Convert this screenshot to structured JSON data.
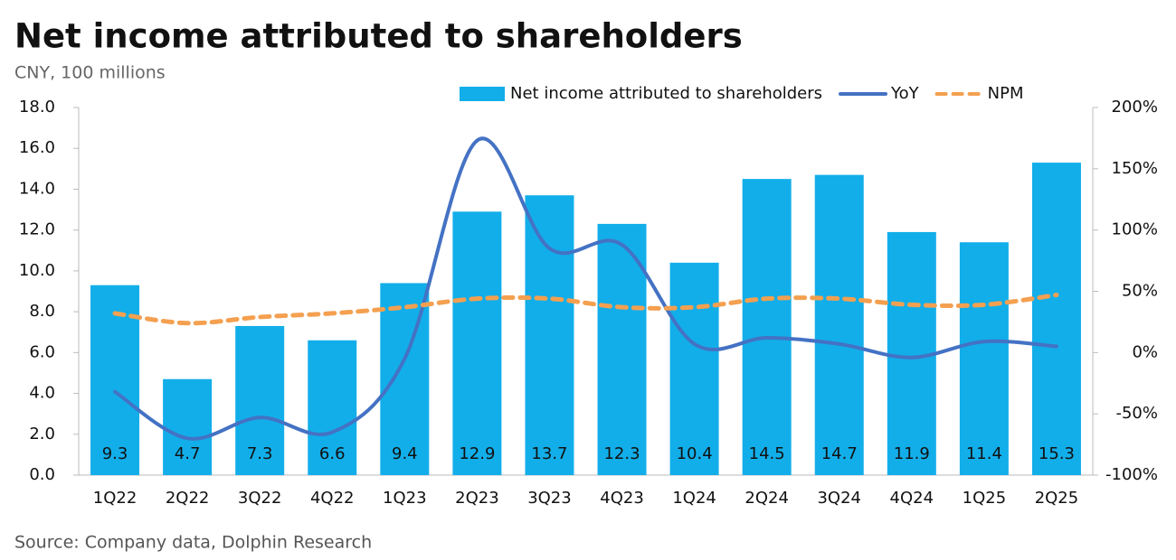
{
  "chart_data": {
    "type": "bar",
    "title": "Net income attributed to shareholders",
    "subtitle": "CNY, 100 millions",
    "source": "Source: Company data,  Dolphin Research",
    "categories": [
      "1Q22",
      "2Q22",
      "3Q22",
      "4Q22",
      "1Q23",
      "2Q23",
      "3Q23",
      "4Q23",
      "1Q24",
      "2Q24",
      "3Q24",
      "4Q24",
      "1Q25",
      "2Q25"
    ],
    "series": [
      {
        "name": "Net income attributed to shareholders",
        "type": "bar",
        "color": "#12aeea",
        "values": [
          9.3,
          4.7,
          7.3,
          6.6,
          9.4,
          12.9,
          13.7,
          12.3,
          10.4,
          14.5,
          14.7,
          11.9,
          11.4,
          15.3
        ]
      },
      {
        "name": "YoY",
        "type": "line",
        "axis": "y2",
        "color": "#4472c4",
        "style": "solid",
        "values": [
          -32,
          -70,
          -53,
          -65,
          -5,
          173,
          85,
          88,
          7,
          12,
          7,
          -4,
          9,
          5
        ]
      },
      {
        "name": "NPM",
        "type": "line",
        "axis": "y2",
        "color": "#f4a050",
        "style": "dashed",
        "values": [
          32,
          24,
          29,
          32,
          37,
          44,
          44,
          37,
          37,
          44,
          44,
          39,
          39,
          47
        ]
      }
    ],
    "ylim": [
      0,
      18
    ],
    "yticks": [
      {
        "value": 0,
        "label": "0.0"
      },
      {
        "value": 2,
        "label": "2.0"
      },
      {
        "value": 4,
        "label": "4.0"
      },
      {
        "value": 6,
        "label": "6.0"
      },
      {
        "value": 8,
        "label": "8.0"
      },
      {
        "value": 10,
        "label": "10.0"
      },
      {
        "value": 12,
        "label": "12.0"
      },
      {
        "value": 14,
        "label": "14.0"
      },
      {
        "value": 16,
        "label": "16.0"
      },
      {
        "value": 18,
        "label": "18.0"
      }
    ],
    "y2lim": [
      -100,
      200
    ],
    "y2ticks": [
      {
        "value": -100,
        "label": "-100%"
      },
      {
        "value": -50,
        "label": "-50%"
      },
      {
        "value": 0,
        "label": "0%"
      },
      {
        "value": 50,
        "label": "50%"
      },
      {
        "value": 100,
        "label": "100%"
      },
      {
        "value": 150,
        "label": "150%"
      },
      {
        "value": 200,
        "label": "200%"
      }
    ],
    "legend": "top",
    "grid": false
  }
}
